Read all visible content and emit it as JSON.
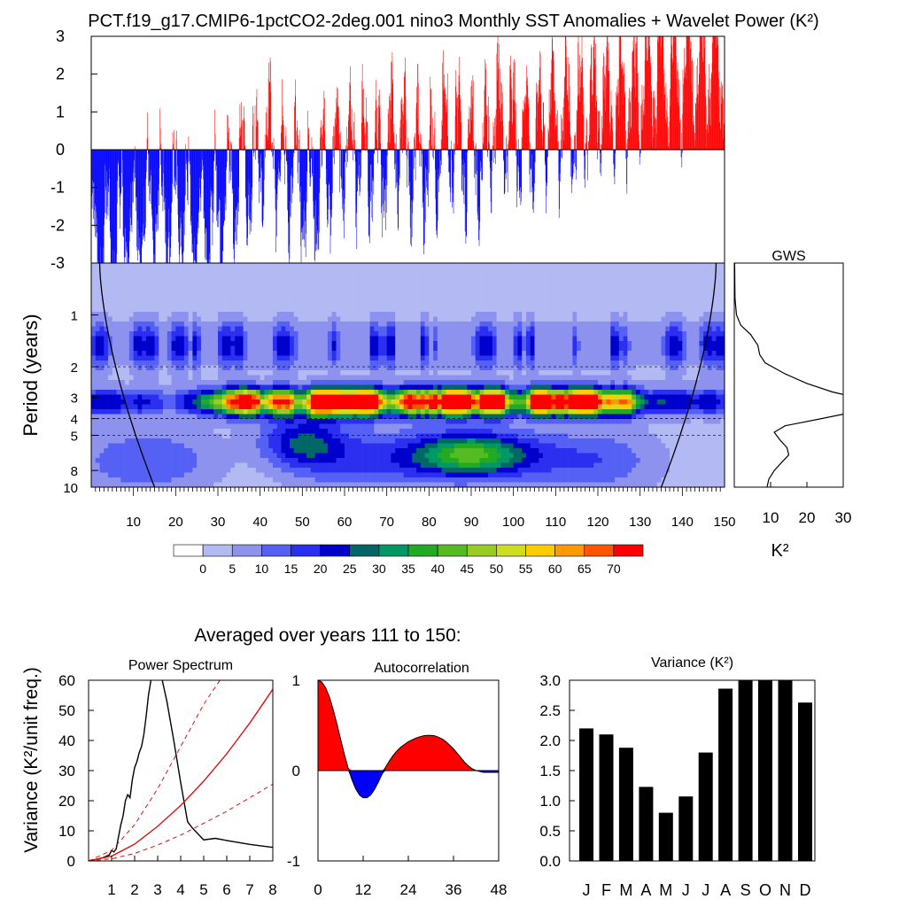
{
  "title": "PCT.f19_g17.CMIP6-1pctCO2-2deg.001 nino3 Monthly SST Anomalies + Wavelet Power (K²)",
  "chart_data": [
    {
      "id": "sst",
      "type": "bar",
      "x_range": [
        0,
        150
      ],
      "ylim": [
        -3,
        3
      ],
      "y_ticks": [
        "3",
        "2",
        "1",
        "0",
        "-1",
        "-2",
        "-3"
      ],
      "y_tick_values": [
        3,
        2,
        1,
        0,
        -1,
        -2,
        -3
      ],
      "colors": {
        "positive": "#ff0000",
        "negative": "#0000ff"
      },
      "anchors_year_value": [
        [
          0,
          -2.6
        ],
        [
          5,
          -2.2
        ],
        [
          12,
          -1.7
        ],
        [
          20,
          -1.4
        ],
        [
          25,
          -2.0
        ],
        [
          30,
          -1.6
        ],
        [
          34,
          -0.8
        ],
        [
          38,
          -0.5
        ],
        [
          42,
          0.2
        ],
        [
          47,
          -0.6
        ],
        [
          52,
          -1.2
        ],
        [
          56,
          -0.6
        ],
        [
          60,
          0.2
        ],
        [
          64,
          -0.1
        ],
        [
          68,
          -0.4
        ],
        [
          72,
          0.4
        ],
        [
          76,
          -0.2
        ],
        [
          80,
          -0.5
        ],
        [
          84,
          0.5
        ],
        [
          88,
          0.0
        ],
        [
          92,
          -0.2
        ],
        [
          96,
          1.0
        ],
        [
          100,
          0.6
        ],
        [
          104,
          0.3
        ],
        [
          108,
          0.9
        ],
        [
          112,
          0.9
        ],
        [
          116,
          0.9
        ],
        [
          120,
          1.4
        ],
        [
          124,
          1.3
        ],
        [
          128,
          1.4
        ],
        [
          132,
          2.0
        ],
        [
          136,
          2.1
        ],
        [
          140,
          2.1
        ],
        [
          145,
          2.3
        ],
        [
          150,
          2.5
        ]
      ]
    },
    {
      "id": "wavelet",
      "type": "heatmap",
      "xlabel": "",
      "ylabel": "Period (years)",
      "x_ticks": [
        "10",
        "20",
        "30",
        "40",
        "50",
        "60",
        "70",
        "80",
        "90",
        "100",
        "110",
        "120",
        "130",
        "140",
        "150"
      ],
      "x_tick_values": [
        10,
        20,
        30,
        40,
        50,
        60,
        70,
        80,
        90,
        100,
        110,
        120,
        130,
        140,
        150
      ],
      "y_ticks": [
        "1",
        "2",
        "3",
        "4",
        "5",
        "8",
        "10"
      ],
      "y_tick_values": [
        1,
        2,
        3,
        4,
        5,
        8,
        10
      ],
      "y_scale": "log",
      "period_range": [
        0.5,
        10
      ],
      "dashed_periods": [
        2,
        4,
        5
      ],
      "contour_levels": [
        0,
        5,
        10,
        15,
        20,
        25,
        30,
        35,
        40,
        45,
        50,
        55,
        60,
        65,
        70
      ],
      "colorbar_labels": [
        "0",
        "5",
        "10",
        "15",
        "20",
        "25",
        "30",
        "35",
        "40",
        "45",
        "50",
        "55",
        "60",
        "65",
        "70"
      ],
      "colorbar_colors": [
        "#ffffff",
        "#b3b9f3",
        "#8c92ee",
        "#5560f5",
        "#2a2ff0",
        "#0000cc",
        "#006666",
        "#009966",
        "#22aa22",
        "#55bb22",
        "#99cc22",
        "#ccdd22",
        "#ffcc00",
        "#ff9900",
        "#ff5500",
        "#ff0000"
      ],
      "hot_band": {
        "period": 3.2,
        "year_start": 36,
        "year_end": 126,
        "power": 72
      },
      "annual_band": {
        "period": 1.3,
        "power": 18
      },
      "cone_of_influence": true
    },
    {
      "id": "gws",
      "type": "line",
      "title": "GWS",
      "xlabel": "K²",
      "x_ticks": [
        "10",
        "20",
        "30"
      ],
      "x_tick_values": [
        10,
        20,
        30
      ],
      "xlim": [
        0,
        30
      ],
      "period_range": [
        0.5,
        10
      ],
      "points_period_power": [
        [
          0.5,
          0.1
        ],
        [
          0.8,
          0.2
        ],
        [
          1.0,
          0.6
        ],
        [
          1.15,
          1.8
        ],
        [
          1.3,
          4.5
        ],
        [
          1.5,
          6.5
        ],
        [
          1.7,
          7.0
        ],
        [
          1.9,
          8.5
        ],
        [
          2.2,
          14.0
        ],
        [
          2.5,
          20.0
        ],
        [
          2.8,
          27.0
        ],
        [
          3.0,
          33.0
        ],
        [
          3.3,
          40.0
        ],
        [
          3.7,
          32.0
        ],
        [
          4.0,
          24.0
        ],
        [
          4.4,
          14.0
        ],
        [
          4.8,
          11.0
        ],
        [
          5.3,
          12.5
        ],
        [
          5.9,
          14.5
        ],
        [
          6.5,
          15.0
        ],
        [
          7.2,
          13.0
        ],
        [
          8.0,
          11.0
        ],
        [
          9.0,
          9.5
        ],
        [
          10.0,
          9.0
        ]
      ]
    },
    {
      "id": "power",
      "type": "line",
      "title": "Power Spectrum",
      "ylabel": "Variance (K²/unit freq.)",
      "xlim": [
        0,
        8
      ],
      "ylim": [
        0,
        60
      ],
      "x_ticks": [
        "1",
        "2",
        "3",
        "4",
        "5",
        "6",
        "7",
        "8"
      ],
      "x_tick_values": [
        1,
        2,
        3,
        4,
        5,
        6,
        7,
        8
      ],
      "y_ticks": [
        "0",
        "10",
        "20",
        "30",
        "40",
        "50",
        "60"
      ],
      "y_tick_values": [
        0,
        10,
        20,
        30,
        40,
        50,
        60
      ],
      "series": [
        {
          "role": "spectrum",
          "color": "#000000",
          "dash": false,
          "points": [
            [
              0,
              0
            ],
            [
              0.3,
              0.5
            ],
            [
              0.6,
              1.0
            ],
            [
              0.9,
              2.0
            ],
            [
              1.0,
              3.5
            ],
            [
              1.1,
              3.0
            ],
            [
              1.2,
              4.0
            ],
            [
              1.3,
              8.0
            ],
            [
              1.4,
              12.0
            ],
            [
              1.5,
              15.0
            ],
            [
              1.6,
              20.0
            ],
            [
              1.7,
              22.0
            ],
            [
              1.8,
              21.0
            ],
            [
              1.9,
              27.0
            ],
            [
              2.0,
              31.0
            ],
            [
              2.1,
              33.0
            ],
            [
              2.2,
              36.0
            ],
            [
              2.3,
              38.0
            ],
            [
              2.4,
              42.0
            ],
            [
              2.5,
              48.0
            ],
            [
              2.6,
              55.0
            ],
            [
              2.75,
              62.0
            ],
            [
              3.0,
              61.0
            ],
            [
              3.2,
              60.0
            ],
            [
              3.4,
              53.0
            ],
            [
              3.7,
              40.0
            ],
            [
              4.0,
              26.0
            ],
            [
              4.3,
              13.0
            ],
            [
              4.5,
              11.0
            ],
            [
              5.0,
              7.0
            ],
            [
              5.5,
              7.5
            ],
            [
              6.0,
              6.8
            ],
            [
              7.0,
              5.5
            ],
            [
              8.0,
              4.5
            ]
          ]
        },
        {
          "role": "red-noise",
          "color": "#dd1111",
          "dash": false,
          "points": [
            [
              0,
              0
            ],
            [
              1,
              1.6
            ],
            [
              2,
              5.6
            ],
            [
              3,
              11.5
            ],
            [
              4,
              18.4
            ],
            [
              5,
              26.5
            ],
            [
              6,
              35.6
            ],
            [
              7,
              45.8
            ],
            [
              8,
              57.0
            ]
          ]
        },
        {
          "role": "upper-bound",
          "color": "#dd1111",
          "dash": true,
          "points": [
            [
              0,
              0
            ],
            [
              1,
              3.5
            ],
            [
              2,
              12.0
            ],
            [
              3,
              24.0
            ],
            [
              4,
              38.0
            ],
            [
              5,
              52.0
            ],
            [
              5.7,
              60.0
            ]
          ]
        },
        {
          "role": "lower-bound",
          "color": "#dd1111",
          "dash": true,
          "points": [
            [
              0,
              0
            ],
            [
              1,
              0.7
            ],
            [
              2,
              2.5
            ],
            [
              3,
              5.3
            ],
            [
              4,
              8.6
            ],
            [
              5,
              12.5
            ],
            [
              6,
              16.5
            ],
            [
              7,
              21.0
            ],
            [
              8,
              25.5
            ]
          ]
        }
      ]
    },
    {
      "id": "autocorr",
      "type": "area",
      "title": "Autocorrelation",
      "xlim": [
        0,
        48
      ],
      "ylim": [
        -1,
        1
      ],
      "x_ticks": [
        "0",
        "12",
        "24",
        "36",
        "48"
      ],
      "x_tick_values": [
        0,
        12,
        24,
        36,
        48
      ],
      "y_ticks": [
        "1",
        "0",
        "-1"
      ],
      "y_tick_values": [
        1,
        0,
        -1
      ],
      "colors": {
        "positive": "#ff0000",
        "negative": "#0000ff"
      },
      "points": [
        [
          0,
          1.0
        ],
        [
          1,
          0.98
        ],
        [
          2,
          0.92
        ],
        [
          3,
          0.82
        ],
        [
          4,
          0.68
        ],
        [
          5,
          0.52
        ],
        [
          6,
          0.35
        ],
        [
          7,
          0.18
        ],
        [
          8,
          0.03
        ],
        [
          9,
          -0.1
        ],
        [
          10,
          -0.2
        ],
        [
          11,
          -0.27
        ],
        [
          12,
          -0.3
        ],
        [
          13,
          -0.3
        ],
        [
          14,
          -0.27
        ],
        [
          15,
          -0.21
        ],
        [
          16,
          -0.13
        ],
        [
          17,
          -0.04
        ],
        [
          18,
          0.04
        ],
        [
          19,
          0.11
        ],
        [
          20,
          0.17
        ],
        [
          21,
          0.22
        ],
        [
          22,
          0.26
        ],
        [
          23,
          0.29
        ],
        [
          24,
          0.32
        ],
        [
          25,
          0.34
        ],
        [
          26,
          0.36
        ],
        [
          27,
          0.375
        ],
        [
          28,
          0.385
        ],
        [
          29,
          0.39
        ],
        [
          30,
          0.39
        ],
        [
          31,
          0.385
        ],
        [
          32,
          0.37
        ],
        [
          33,
          0.35
        ],
        [
          34,
          0.32
        ],
        [
          35,
          0.28
        ],
        [
          36,
          0.24
        ],
        [
          37,
          0.19
        ],
        [
          38,
          0.14
        ],
        [
          39,
          0.09
        ],
        [
          40,
          0.05
        ],
        [
          41,
          0.02
        ],
        [
          42,
          0.0
        ],
        [
          43,
          -0.01
        ],
        [
          44,
          -0.02
        ],
        [
          45,
          -0.02
        ],
        [
          46,
          -0.02
        ],
        [
          47,
          -0.02
        ],
        [
          48,
          -0.02
        ]
      ]
    },
    {
      "id": "variance",
      "type": "bar",
      "title": "Variance (K²)",
      "categories": [
        "J",
        "F",
        "M",
        "A",
        "M",
        "J",
        "J",
        "A",
        "S",
        "O",
        "N",
        "D"
      ],
      "values": [
        2.2,
        2.1,
        1.88,
        1.23,
        0.8,
        1.07,
        1.8,
        2.86,
        3.0,
        3.0,
        3.0,
        2.63
      ],
      "ylim": [
        0,
        3
      ],
      "y_ticks": [
        "0.0",
        "0.5",
        "1.0",
        "1.5",
        "2.0",
        "2.5",
        "3.0"
      ],
      "y_tick_values": [
        0,
        0.5,
        1.0,
        1.5,
        2.0,
        2.5,
        3.0
      ],
      "color": "#000000"
    }
  ],
  "captions": {
    "averaged": "Averaged over years 111 to 150:"
  }
}
